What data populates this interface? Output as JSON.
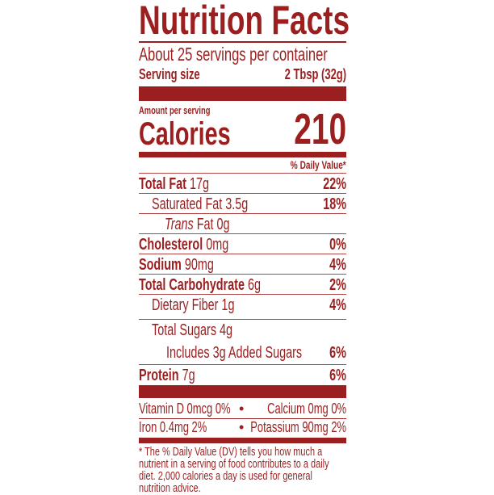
{
  "title": "Nutrition Facts",
  "servings_per_container": "About 25 servings per container",
  "serving_size_label": "Serving size",
  "serving_size_value": "2 Tbsp (32g)",
  "amount_per_serving": "Amount per serving",
  "calories_label": "Calories",
  "calories_value": "210",
  "dv_header": "% Daily Value*",
  "nutrients": [
    {
      "name": "Total Fat",
      "amount": "17g",
      "dv": "22%"
    },
    {
      "name": "Saturated Fat",
      "amount": "3.5g",
      "dv": "18%"
    },
    {
      "name": "Trans",
      "amount": "Fat 0g",
      "dv": ""
    },
    {
      "name": "Cholesterol",
      "amount": "0mg",
      "dv": "0%"
    },
    {
      "name": "Sodium",
      "amount": "90mg",
      "dv": "4%"
    },
    {
      "name": "Total Carbohydrate",
      "amount": "6g",
      "dv": "2%"
    },
    {
      "name": "Dietary Fiber",
      "amount": "1g",
      "dv": "4%"
    },
    {
      "name": "Total Sugars",
      "amount": "4g",
      "dv": ""
    },
    {
      "name": "Includes 3g Added Sugars",
      "amount": "",
      "dv": "6%"
    },
    {
      "name": "Protein",
      "amount": "7g",
      "dv": "6%"
    }
  ],
  "micros": {
    "vitamin_d": "Vitamin D 0mcg 0%",
    "calcium": "Calcium 0mg 0%",
    "iron": "Iron 0.4mg 2%",
    "potassium": "Potassium 90mg 2%",
    "bullet": "•"
  },
  "footnote": "* The % Daily Value (DV) tells you how much a nutrient in a serving of food contributes to a daily diet. 2,000 calories a day is used for general nutrition advice.",
  "colors": {
    "ink": "#9b1f1f",
    "background": "#ffffff"
  }
}
